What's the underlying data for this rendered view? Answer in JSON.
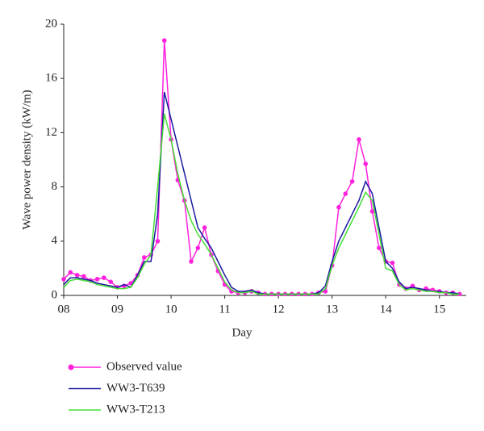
{
  "chart_data": {
    "type": "line",
    "xlabel": "Day",
    "ylabel": "Wave power density (kW/m)",
    "x": [
      8.0,
      8.125,
      8.25,
      8.375,
      8.5,
      8.625,
      8.75,
      8.875,
      9.0,
      9.125,
      9.25,
      9.375,
      9.5,
      9.625,
      9.75,
      9.875,
      10.0,
      10.125,
      10.25,
      10.375,
      10.5,
      10.625,
      10.75,
      10.875,
      11.0,
      11.125,
      11.25,
      11.375,
      11.5,
      11.625,
      11.75,
      11.875,
      12.0,
      12.125,
      12.25,
      12.375,
      12.5,
      12.625,
      12.75,
      12.875,
      13.0,
      13.125,
      13.25,
      13.375,
      13.5,
      13.625,
      13.75,
      13.875,
      14.0,
      14.125,
      14.25,
      14.375,
      14.5,
      14.625,
      14.75,
      14.875,
      15.0,
      15.125,
      15.25,
      15.375
    ],
    "series": [
      {
        "name": "Observed value",
        "color": "#ff22dd",
        "markers": true,
        "values": [
          1.2,
          1.7,
          1.5,
          1.4,
          1.1,
          1.2,
          1.3,
          1.0,
          0.6,
          0.7,
          0.9,
          1.5,
          2.8,
          3.0,
          4.0,
          18.8,
          11.5,
          8.5,
          7.0,
          2.5,
          3.5,
          5.0,
          3.0,
          1.8,
          0.8,
          0.3,
          0.2,
          0.2,
          0.3,
          0.2,
          0.1,
          0.1,
          0.1,
          0.1,
          0.1,
          0.1,
          0.1,
          0.1,
          0.2,
          0.3,
          2.2,
          6.5,
          7.5,
          8.4,
          11.5,
          9.7,
          6.2,
          3.5,
          2.5,
          2.4,
          0.8,
          0.5,
          0.7,
          0.4,
          0.5,
          0.4,
          0.3,
          0.2,
          0.2,
          0.1
        ]
      },
      {
        "name": "WW3-T639",
        "color": "#1a1aa0",
        "markers": false,
        "values": [
          0.8,
          1.3,
          1.3,
          1.2,
          1.1,
          0.9,
          0.8,
          0.7,
          0.6,
          0.8,
          0.6,
          1.5,
          2.5,
          2.5,
          6.0,
          15.0,
          13.0,
          11.0,
          9.0,
          7.0,
          5.0,
          4.2,
          3.5,
          2.5,
          1.5,
          0.6,
          0.3,
          0.3,
          0.4,
          0.2,
          0.1,
          0.1,
          0.1,
          0.1,
          0.1,
          0.1,
          0.1,
          0.1,
          0.2,
          0.7,
          2.5,
          4.0,
          5.0,
          6.0,
          7.0,
          8.4,
          7.5,
          5.0,
          2.5,
          2.0,
          1.0,
          0.5,
          0.6,
          0.5,
          0.4,
          0.3,
          0.3,
          0.2,
          0.2,
          0.1
        ]
      },
      {
        "name": "WW3-T213",
        "color": "#44dd33",
        "markers": false,
        "values": [
          0.6,
          1.1,
          1.2,
          1.1,
          1.0,
          0.8,
          0.7,
          0.6,
          0.5,
          0.5,
          0.6,
          1.3,
          2.3,
          3.0,
          8.0,
          13.4,
          11.5,
          9.0,
          7.0,
          5.5,
          4.5,
          3.8,
          3.0,
          2.0,
          1.0,
          0.4,
          0.2,
          0.2,
          0.3,
          0.1,
          0.1,
          0.1,
          0.1,
          0.1,
          0.1,
          0.1,
          0.1,
          0.1,
          0.1,
          0.5,
          2.2,
          3.5,
          4.5,
          5.5,
          6.5,
          7.6,
          7.0,
          4.5,
          2.0,
          1.8,
          0.8,
          0.4,
          0.5,
          0.4,
          0.3,
          0.3,
          0.2,
          0.2,
          0.1,
          0.1
        ]
      }
    ],
    "xlim": [
      8.0,
      15.5
    ],
    "xticks": [
      {
        "value": 8,
        "label": "08"
      },
      {
        "value": 9,
        "label": "09"
      },
      10,
      11,
      12,
      13,
      14,
      15
    ],
    "ylim": [
      0,
      20
    ],
    "yticks": [
      0,
      4,
      8,
      12,
      16,
      20
    ]
  }
}
